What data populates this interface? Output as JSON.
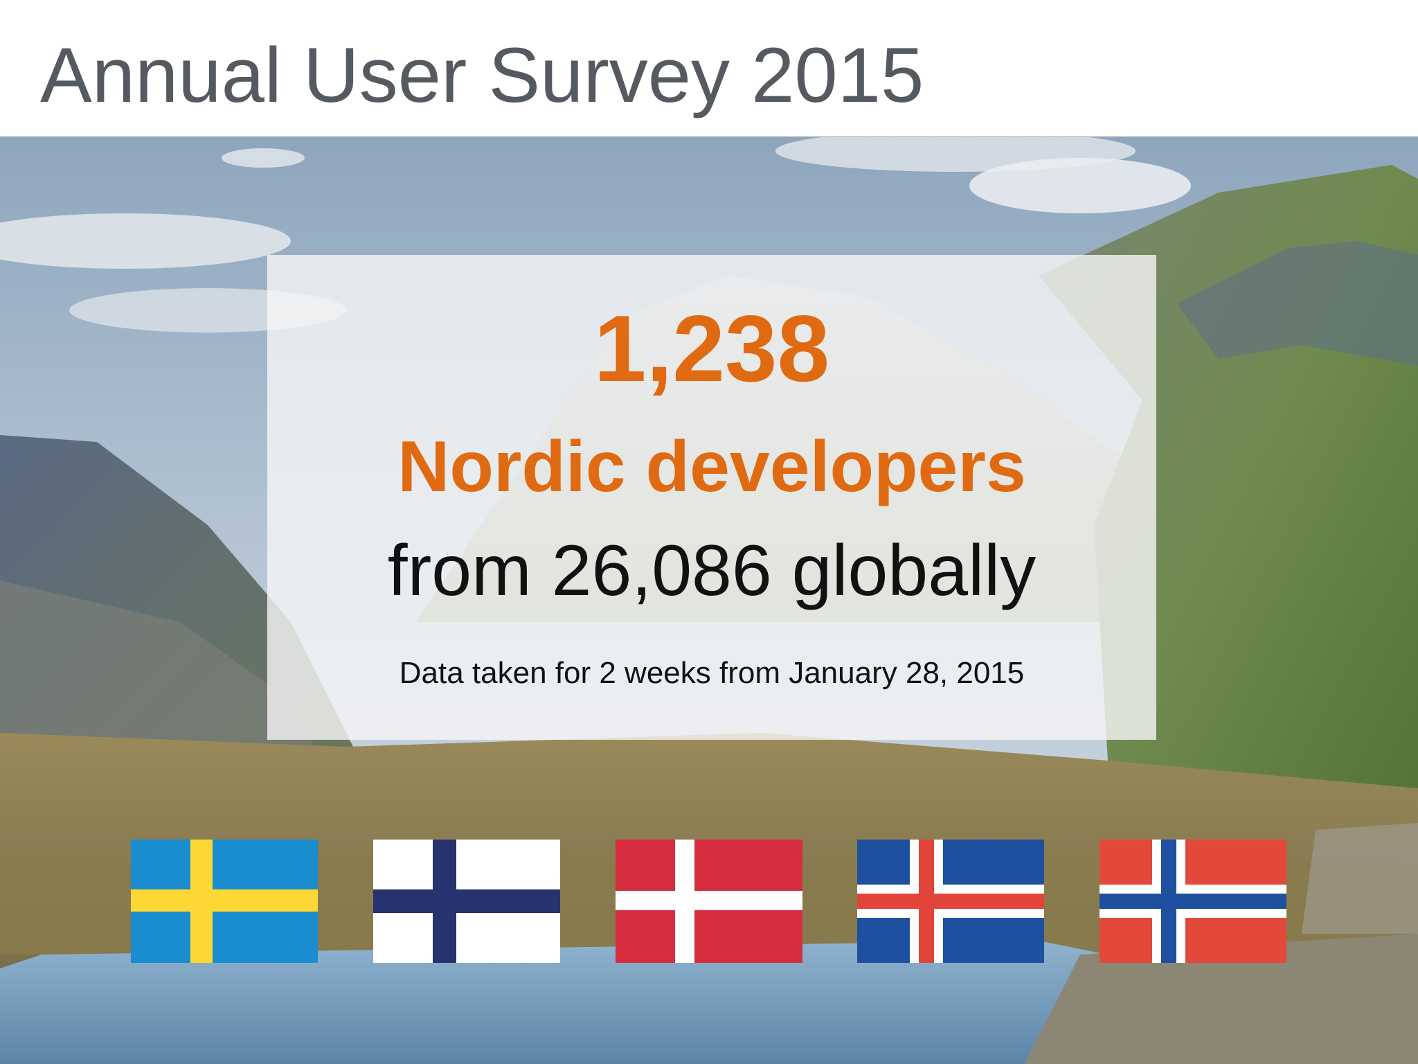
{
  "slide": {
    "title": "Annual User Survey 2015"
  },
  "panel": {
    "count": "1,238",
    "headline": "Nordic developers",
    "subline": "from 26,086 globally",
    "note": "Data taken for 2 weeks from January 28, 2015"
  },
  "colors": {
    "accent": "#e06a12",
    "title_text": "#555a61",
    "body_text": "#111111"
  },
  "flags": [
    {
      "name": "sweden-flag",
      "field": "#1a8dd0",
      "cross": "#fdd734",
      "inner": null
    },
    {
      "name": "finland-flag",
      "field": "#ffffff",
      "cross": "#27336e",
      "inner": null
    },
    {
      "name": "denmark-flag",
      "field": "#d62d3f",
      "cross": "#ffffff",
      "inner": null
    },
    {
      "name": "iceland-flag",
      "field": "#1f4f9f",
      "cross": "#ffffff",
      "inner": "#e2443a"
    },
    {
      "name": "norway-flag",
      "field": "#e3493b",
      "cross": "#ffffff",
      "inner": "#1f4f9f"
    }
  ]
}
